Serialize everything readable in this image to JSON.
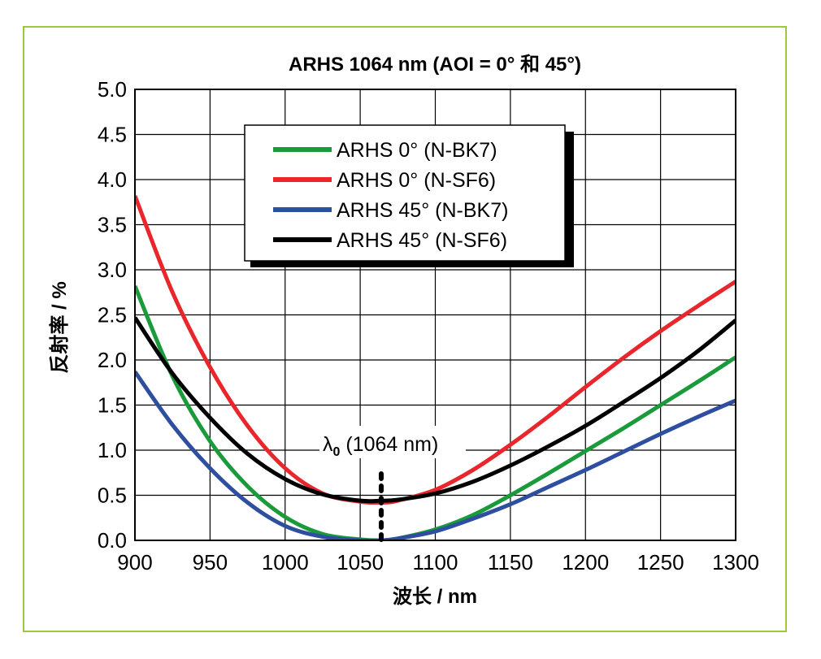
{
  "chart_data": {
    "type": "line",
    "title": "ARHS 1064 nm (AOI = 0° 和 45°)",
    "xlabel": "波长 / nm",
    "ylabel": "反射率 / %",
    "xlim": [
      900,
      1300
    ],
    "ylim": [
      0,
      5
    ],
    "xticks": [
      900,
      950,
      1000,
      1050,
      1100,
      1150,
      1200,
      1250,
      1300
    ],
    "yticks": [
      0.0,
      0.5,
      1.0,
      1.5,
      2.0,
      2.5,
      3.0,
      3.5,
      4.0,
      4.5,
      5.0
    ],
    "grid": true,
    "legend_position": "top-center",
    "x": [
      900,
      925,
      950,
      975,
      1000,
      1025,
      1050,
      1064,
      1075,
      1100,
      1125,
      1150,
      1175,
      1200,
      1225,
      1250,
      1275,
      1300
    ],
    "series": [
      {
        "name": "ARHS 0° (N-BK7)",
        "color": "#1a9a3a",
        "values": [
          2.82,
          1.82,
          1.1,
          0.6,
          0.26,
          0.07,
          0.01,
          0.0,
          0.02,
          0.12,
          0.28,
          0.5,
          0.74,
          0.99,
          1.24,
          1.5,
          1.76,
          2.03
        ]
      },
      {
        "name": "ARHS 0° (N-SF6)",
        "color": "#e8262b",
        "values": [
          3.82,
          2.75,
          1.92,
          1.27,
          0.8,
          0.52,
          0.43,
          0.42,
          0.44,
          0.56,
          0.78,
          1.06,
          1.37,
          1.7,
          2.02,
          2.32,
          2.6,
          2.87
        ]
      },
      {
        "name": "ARHS 45° (N-BK7)",
        "color": "#2e4e9f",
        "values": [
          1.87,
          1.28,
          0.8,
          0.42,
          0.16,
          0.04,
          0.0,
          0.0,
          0.02,
          0.1,
          0.24,
          0.4,
          0.59,
          0.78,
          0.98,
          1.18,
          1.37,
          1.55
        ]
      },
      {
        "name": "ARHS 45° (N-SF6)",
        "color": "#000000",
        "values": [
          2.47,
          1.85,
          1.36,
          0.96,
          0.68,
          0.51,
          0.44,
          0.44,
          0.45,
          0.52,
          0.65,
          0.83,
          1.04,
          1.27,
          1.53,
          1.8,
          2.1,
          2.44
        ]
      }
    ],
    "annotation": {
      "label": "λ",
      "subscript": "0",
      "text": " (1064 nm)",
      "x": 1064
    }
  }
}
